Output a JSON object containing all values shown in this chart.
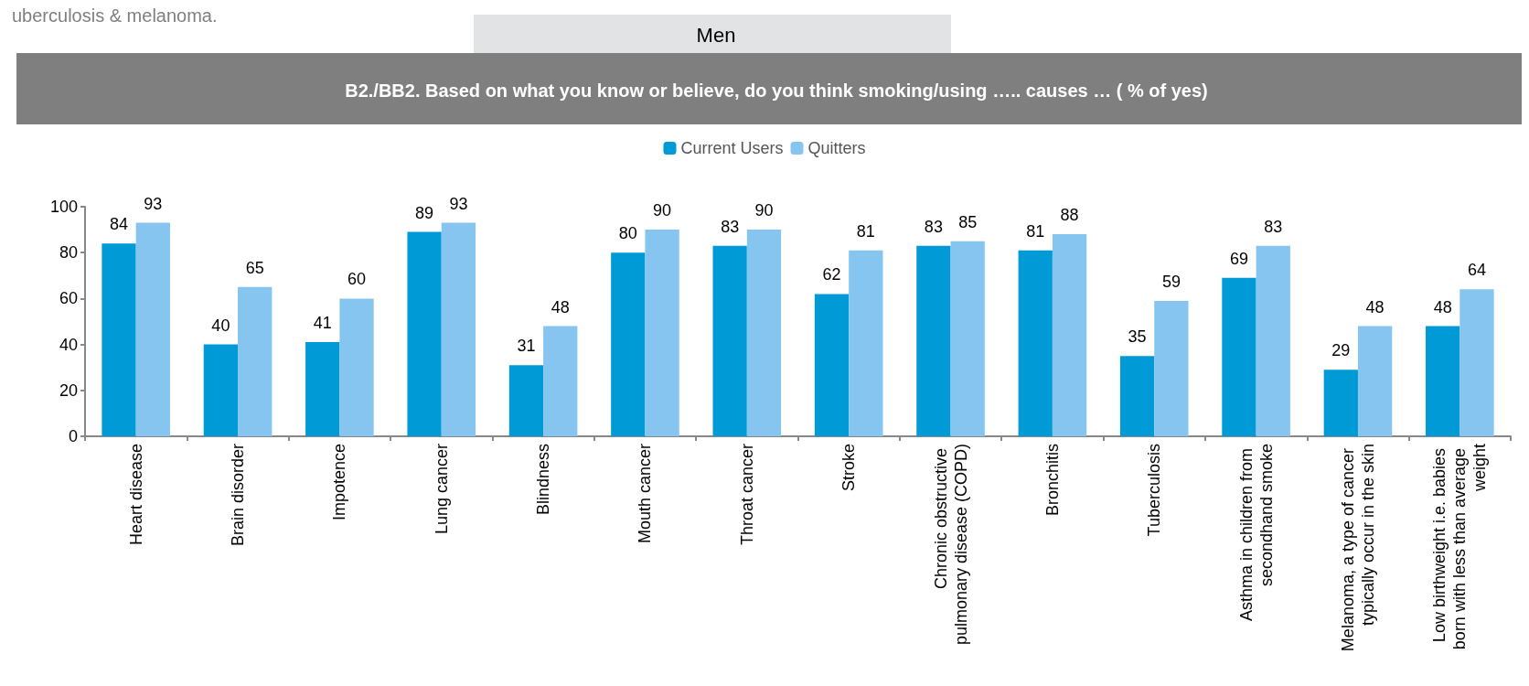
{
  "chart_data": {
    "type": "bar",
    "title": "B2./BB2. Based on what you know or believe, do you think smoking/using ….. causes … ( % of yes)",
    "subtitle": "Men",
    "annotations": [
      "uberculosis & melanoma."
    ],
    "categories": [
      "Heart disease",
      "Brain disorder",
      "Impotence",
      "Lung cancer",
      "Blindness",
      "Mouth cancer",
      "Throat cancer",
      "Stroke",
      "Chronic obstructive pulmonary disease (COPD)",
      "Bronchitis",
      "Tuberculosis",
      "Asthma in children from secondhand smoke",
      "Melanoma, a type of cancer typically occur in the skin",
      "Low birthweight i.e. babies born with less than average weight"
    ],
    "series": [
      {
        "name": "Current Users",
        "color": "#009ad6",
        "values": [
          84,
          40,
          41,
          89,
          31,
          80,
          83,
          62,
          83,
          81,
          35,
          69,
          29,
          48
        ]
      },
      {
        "name": "Quitters",
        "color": "#87c5f1",
        "values": [
          93,
          65,
          60,
          93,
          48,
          90,
          90,
          81,
          85,
          88,
          59,
          83,
          48,
          64
        ]
      }
    ],
    "ylim": [
      0,
      100
    ],
    "yticks": [
      0,
      20,
      40,
      60,
      80,
      100
    ],
    "grid": false,
    "legend": "top",
    "data_labels": true
  }
}
